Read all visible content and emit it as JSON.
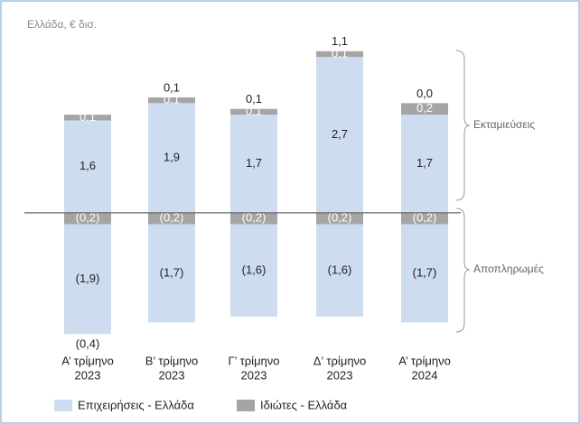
{
  "chart_data": {
    "type": "stacked_bar",
    "title": "Ελλάδα, € δισ.",
    "categories": [
      [
        "Α’ τρίμηνο",
        "2023"
      ],
      [
        "Β’ τρίμηνο",
        "2023"
      ],
      [
        "Γ’ τρίμηνο",
        "2023"
      ],
      [
        "Δ’ τρίμηνο",
        "2023"
      ],
      [
        "Α’ τρίμηνο",
        "2024"
      ]
    ],
    "series": [
      {
        "name": "Επιχειρήσεις - Ελλάδα",
        "color": "#cddcef",
        "values": [
          1.6,
          1.9,
          1.7,
          2.7,
          1.7
        ],
        "value_labels": [
          "1,6",
          "1,9",
          "1,7",
          "2,7",
          "1,7"
        ],
        "repayments": [
          -1.9,
          -1.7,
          -1.6,
          -1.6,
          -1.7
        ],
        "repayment_labels": [
          "(1,9)",
          "(1,7)",
          "(1,6)",
          "(1,6)",
          "(1,7)"
        ]
      },
      {
        "name": "Ιδιώτες - Ελλάδα",
        "color": "#a5a5a5",
        "values": [
          0.1,
          0.1,
          0.1,
          0.1,
          0.2
        ],
        "value_labels": [
          "0,1",
          "0,1",
          "0,1",
          "0,1",
          "0,2"
        ],
        "repayments": [
          -0.2,
          -0.2,
          -0.2,
          -0.2,
          -0.2
        ],
        "repayment_labels": [
          "(0,2)",
          "(0,2)",
          "(0,2)",
          "(0,2)",
          "(0,2)"
        ]
      }
    ],
    "net_values": [
      -0.4,
      0.1,
      0.1,
      1.1,
      0.0
    ],
    "net_labels": [
      "(0,4)",
      "0,1",
      "0,1",
      "1,1",
      "0,0"
    ],
    "annotations": [
      "Εκταμιεύσεις",
      "Αποπληρωμές"
    ],
    "ylim": [
      -2.3,
      3.0
    ]
  }
}
